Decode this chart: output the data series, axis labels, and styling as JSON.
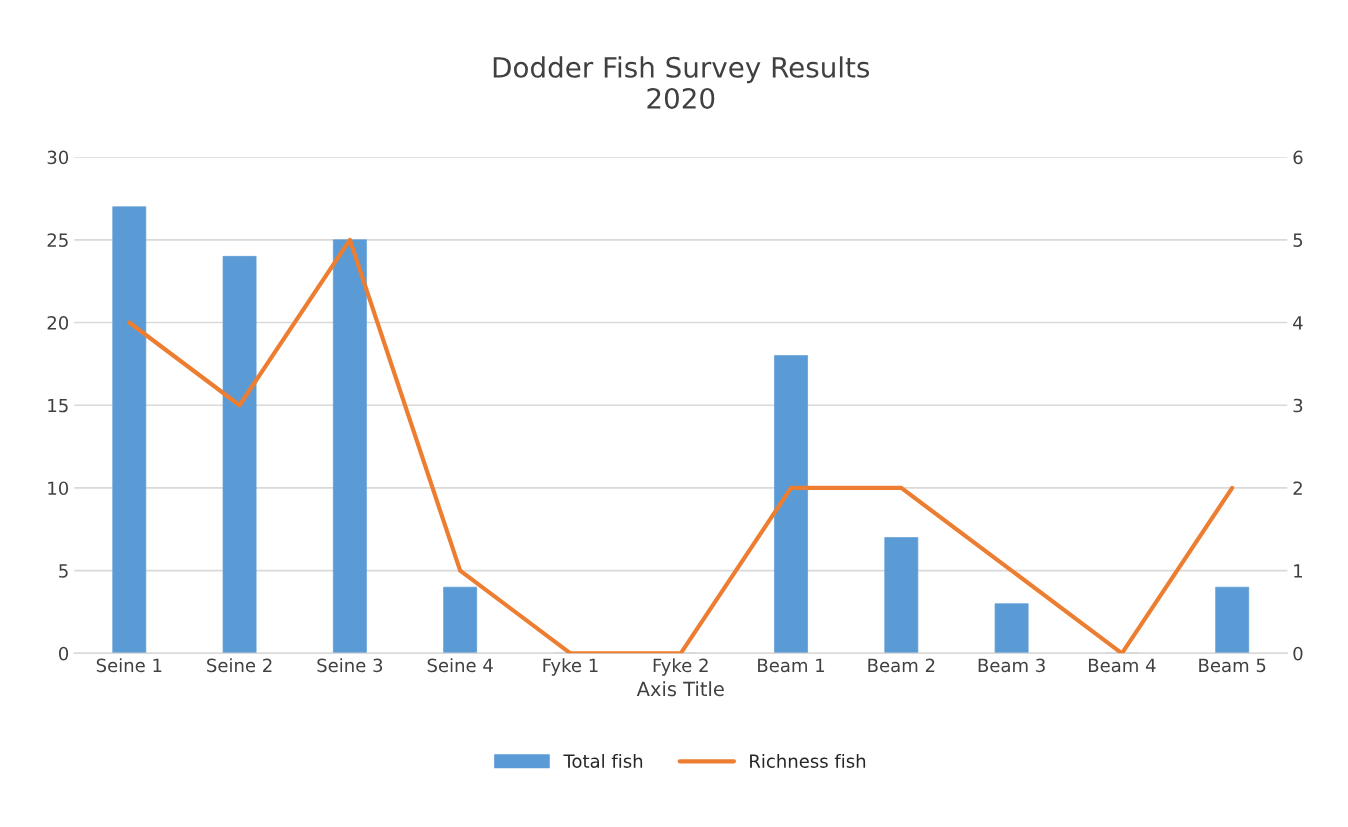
{
  "chart_data": {
    "type": "bar",
    "title": "Dodder Fish Survey Results\n2020",
    "xlabel": "Axis Title",
    "categories": [
      "Seine 1",
      "Seine 2",
      "Seine 3",
      "Seine 4",
      "Fyke 1",
      "Fyke 2",
      "Beam 1",
      "Beam 2",
      "Beam 3",
      "Beam 4",
      "Beam 5"
    ],
    "series": [
      {
        "name": "Total fish",
        "color": "#5b9bd5",
        "values": [
          27,
          24,
          25,
          4,
          0,
          0,
          18,
          7,
          3,
          0,
          4
        ]
      },
      {
        "name": "Richness fish",
        "type": "line",
        "axis": "y2",
        "color": "#ed7d31",
        "values": [
          4,
          3,
          5,
          1,
          0,
          0,
          2,
          2,
          1,
          0,
          2
        ]
      }
    ],
    "ylim": [
      0,
      30
    ],
    "yticks": [
      0,
      5,
      10,
      15,
      20,
      25,
      30
    ],
    "y2lim": [
      0,
      6
    ],
    "y2ticks": [
      0,
      1,
      2,
      3,
      4,
      5,
      6
    ],
    "grid": "y",
    "legend": "bottom",
    "marker": "none",
    "line_style": "solid"
  }
}
